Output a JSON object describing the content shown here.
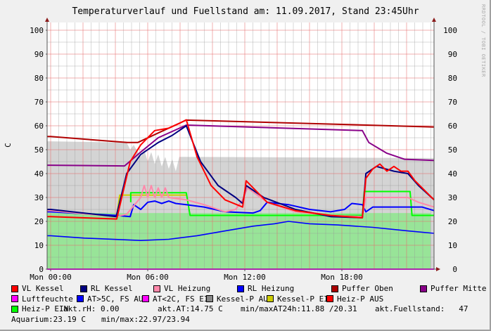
{
  "chart_data": {
    "type": "line",
    "title": "Temperaturverlauf und Fuellstand am: 11.09.2017, Stand 23:45Uhr",
    "ylabel": "C",
    "ylim": [
      0,
      103
    ],
    "yticks": [
      0,
      10,
      20,
      30,
      40,
      50,
      60,
      70,
      80,
      90,
      100
    ],
    "xlim": [
      "00:00",
      "23:42"
    ],
    "xticks": [
      {
        "t": "00:00",
        "label": "Mon 00:00"
      },
      {
        "t": "06:00",
        "label": "Mon 06:00"
      },
      {
        "t": "12:00",
        "label": "Mon 12:00"
      },
      {
        "t": "18:00",
        "label": "Mon 18:00"
      }
    ],
    "grid": true,
    "watermark": "RRDTOOL / TOBI OETIKER",
    "areas": [
      {
        "name": "Kessel-P AUS",
        "color": "#d4d4d4",
        "points": [
          [
            "00:00",
            53.5
          ],
          [
            "04:42",
            53
          ],
          [
            "04:55",
            50
          ],
          [
            "05:08",
            52
          ],
          [
            "05:34",
            47
          ],
          [
            "05:47",
            50
          ],
          [
            "06:00",
            45
          ],
          [
            "06:13",
            49
          ],
          [
            "06:26",
            44
          ],
          [
            "06:39",
            48
          ],
          [
            "06:52",
            43
          ],
          [
            "07:05",
            47
          ],
          [
            "07:18",
            42
          ],
          [
            "07:31",
            46
          ],
          [
            "07:44",
            41
          ],
          [
            "07:57",
            47
          ],
          [
            "08:23",
            47
          ],
          [
            "23:42",
            46.5
          ]
        ]
      },
      {
        "name": "Fuellstand",
        "color": "#98e498",
        "points": [
          [
            "00:00",
            23.5
          ],
          [
            "23:29",
            23.5
          ]
        ]
      }
    ],
    "series": [
      {
        "name": "Puffer Oben",
        "color": "#b00000",
        "points": [
          [
            "00:00",
            55.5
          ],
          [
            "04:45",
            53
          ],
          [
            "05:23",
            53
          ],
          [
            "06:39",
            57
          ],
          [
            "08:23",
            62.4
          ],
          [
            "23:42",
            59.5
          ]
        ]
      },
      {
        "name": "Puffer Mitte",
        "color": "#880088",
        "points": [
          [
            "00:00",
            43.5
          ],
          [
            "04:34",
            43.2
          ],
          [
            "05:34",
            49
          ],
          [
            "06:39",
            55
          ],
          [
            "08:23",
            60.3
          ],
          [
            "19:16",
            58
          ],
          [
            "19:40",
            53
          ],
          [
            "20:47",
            48.5
          ],
          [
            "21:52",
            46
          ],
          [
            "23:42",
            45.5
          ]
        ]
      },
      {
        "name": "Luftfeuchte",
        "color": "#ff00ff",
        "points": [
          [
            "00:00",
            0
          ],
          [
            "23:42",
            0
          ]
        ]
      },
      {
        "name": "AT>5C, FS AUS",
        "color": "#0000ff",
        "points": [
          [
            "00:00",
            14
          ],
          [
            "02:05",
            13
          ],
          [
            "05:34",
            12
          ],
          [
            "07:18",
            12.5
          ],
          [
            "09:03",
            14
          ],
          [
            "10:47",
            16
          ],
          [
            "12:31",
            18
          ],
          [
            "13:50",
            19
          ],
          [
            "14:42",
            20
          ],
          [
            "16:00",
            19
          ],
          [
            "17:44",
            18.5
          ],
          [
            "19:55",
            17.5
          ],
          [
            "22:05",
            16
          ],
          [
            "23:42",
            15
          ]
        ]
      },
      {
        "name": "Kessel-P EIN",
        "color": "#cccc00",
        "points": [
          [
            "04:05",
            22
          ],
          [
            "04:16",
            31
          ],
          [
            "08:23",
            31
          ]
        ]
      },
      {
        "name": "Heiz-P EIN",
        "color": "#00ff00",
        "points": [
          [
            "04:57",
            28
          ],
          [
            "04:57",
            32
          ],
          [
            "08:23",
            32
          ],
          [
            "08:37",
            22.5
          ],
          [
            "19:16",
            22.5
          ],
          [
            "19:23",
            32.5
          ],
          [
            "22:13",
            32.5
          ],
          [
            "22:20",
            22.5
          ],
          [
            "23:42",
            22.5
          ]
        ]
      },
      {
        "name": "RL Heizung",
        "color": "#0000ff",
        "points": [
          [
            "00:00",
            24
          ],
          [
            "04:03",
            22.5
          ],
          [
            "04:55",
            22
          ],
          [
            "05:08",
            27
          ],
          [
            "05:34",
            25
          ],
          [
            "06:00",
            28
          ],
          [
            "06:26",
            28.5
          ],
          [
            "06:52",
            27.5
          ],
          [
            "07:18",
            28.5
          ],
          [
            "07:44",
            27.5
          ],
          [
            "08:23",
            27
          ],
          [
            "09:29",
            26
          ],
          [
            "10:47",
            24
          ],
          [
            "12:31",
            23.5
          ],
          [
            "12:57",
            24.5
          ],
          [
            "13:23",
            28
          ],
          [
            "14:42",
            27
          ],
          [
            "16:00",
            25
          ],
          [
            "17:18",
            24
          ],
          [
            "18:10",
            25
          ],
          [
            "18:37",
            27.5
          ],
          [
            "19:16",
            27
          ],
          [
            "19:29",
            24
          ],
          [
            "19:55",
            26
          ],
          [
            "22:57",
            26
          ],
          [
            "23:42",
            24.5
          ]
        ]
      },
      {
        "name": "VL Heizung",
        "color": "#ff88aa",
        "points": [
          [
            "00:00",
            24.5
          ],
          [
            "04:03",
            22
          ],
          [
            "04:42",
            23
          ],
          [
            "05:34",
            30
          ],
          [
            "05:47",
            35
          ],
          [
            "06:00",
            30
          ],
          [
            "06:13",
            35
          ],
          [
            "06:26",
            30
          ],
          [
            "06:39",
            34
          ],
          [
            "06:52",
            30
          ],
          [
            "07:05",
            34
          ],
          [
            "07:18",
            30
          ],
          [
            "08:23",
            29
          ],
          [
            "09:29",
            27
          ],
          [
            "10:47",
            24
          ],
          [
            "11:26",
            25
          ],
          [
            "11:52",
            29
          ],
          [
            "12:10",
            34
          ],
          [
            "13:23",
            28
          ],
          [
            "15:08",
            24
          ],
          [
            "17:18",
            22.5
          ],
          [
            "19:16",
            22
          ],
          [
            "19:29",
            30
          ],
          [
            "22:05",
            30
          ],
          [
            "22:44",
            28
          ],
          [
            "23:42",
            26
          ]
        ]
      },
      {
        "name": "RL Kessel",
        "color": "#000080",
        "points": [
          [
            "00:00",
            25
          ],
          [
            "04:03",
            22
          ],
          [
            "04:42",
            40
          ],
          [
            "05:34",
            48
          ],
          [
            "06:39",
            53
          ],
          [
            "07:31",
            56
          ],
          [
            "08:23",
            60
          ],
          [
            "09:16",
            45
          ],
          [
            "10:21",
            35
          ],
          [
            "11:26",
            30
          ],
          [
            "11:52",
            27.5
          ],
          [
            "12:05",
            35
          ],
          [
            "13:10",
            30
          ],
          [
            "15:08",
            25
          ],
          [
            "17:18",
            22
          ],
          [
            "19:16",
            21.5
          ],
          [
            "19:29",
            40
          ],
          [
            "20:08",
            43
          ],
          [
            "21:13",
            41
          ],
          [
            "22:05",
            40
          ],
          [
            "22:44",
            35
          ],
          [
            "23:42",
            29
          ]
        ]
      },
      {
        "name": "VL Kessel",
        "color": "#ff0000",
        "points": [
          [
            "00:00",
            22
          ],
          [
            "04:05",
            21
          ],
          [
            "04:55",
            45
          ],
          [
            "05:34",
            52
          ],
          [
            "06:26",
            58
          ],
          [
            "07:18",
            59
          ],
          [
            "07:57",
            61
          ],
          [
            "08:23",
            62.5
          ],
          [
            "09:03",
            47
          ],
          [
            "09:55",
            35
          ],
          [
            "10:47",
            29
          ],
          [
            "11:52",
            26
          ],
          [
            "12:05",
            37
          ],
          [
            "13:23",
            28
          ],
          [
            "15:08",
            24.5
          ],
          [
            "17:18",
            22.5
          ],
          [
            "19:16",
            21.5
          ],
          [
            "19:29",
            38
          ],
          [
            "19:55",
            42
          ],
          [
            "20:21",
            44
          ],
          [
            "20:47",
            41
          ],
          [
            "21:13",
            43
          ],
          [
            "21:39",
            41
          ],
          [
            "22:05",
            41
          ],
          [
            "22:31",
            37
          ],
          [
            "23:42",
            29
          ]
        ]
      }
    ]
  },
  "legend": {
    "items": [
      {
        "label": "VL Kessel",
        "color": "#ff0000"
      },
      {
        "label": "RL Kessel",
        "color": "#000080"
      },
      {
        "label": "VL Heizung",
        "color": "#ff88aa"
      },
      {
        "label": "RL Heizung",
        "color": "#0000ff"
      },
      {
        "label": "Puffer Oben",
        "color": "#aa0000"
      },
      {
        "label": "Puffer Mitte",
        "color": "#880088"
      },
      {
        "label": "Luftfeuchte",
        "color": "#ff00ff"
      },
      {
        "label": "AT>5C, FS AUS",
        "color": "#0000ff"
      },
      {
        "label": "AT<2C, FS EIN",
        "color": "#ff00ff"
      },
      {
        "label": "Kessel-P AUS",
        "color": "#888888"
      },
      {
        "label": "Kessel-P EIN",
        "color": "#cccc00"
      },
      {
        "label": "Heiz-P AUS",
        "color": "#ff0000"
      },
      {
        "label": "Heiz-P EIN",
        "color": "#00ff00"
      }
    ],
    "akt_rh": "akt.rH: 0.00",
    "akt_at": "akt.AT:14.75 C",
    "minmax_at": "min/maxAT24h:11.88 /20.31",
    "fuellstand": "akt.Fuellstand:   47",
    "aquarium": "Aquarium:23.19 C",
    "aquarium_minmax": "min/max:22.97/23.94"
  }
}
